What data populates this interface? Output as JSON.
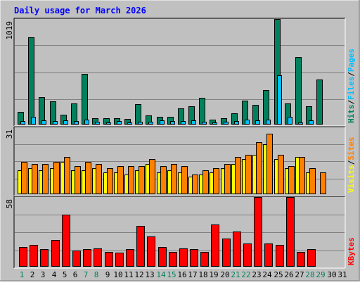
{
  "title": "Daily usage for March 2026",
  "colors": {
    "frame_bg": "#c0c0c0",
    "title_text": "#0000ff",
    "hits": "#00805c",
    "files": "#00c0ff",
    "sites": "#ff8000",
    "visits": "#ffff00",
    "kbytes": "#ff0000",
    "weekday_label": "#000000",
    "weekend_label": "#00805c"
  },
  "chart_data": [
    {
      "type": "bar",
      "name": "hits-files",
      "x": [
        1,
        2,
        3,
        4,
        5,
        6,
        7,
        8,
        9,
        10,
        11,
        12,
        13,
        14,
        15,
        16,
        17,
        18,
        19,
        20,
        21,
        22,
        23,
        24,
        25,
        26,
        27,
        28,
        29,
        30,
        31
      ],
      "series": [
        {
          "name": "Hits",
          "values": [
            115,
            839,
            259,
            222,
            90,
            196,
            487,
            58,
            52,
            53,
            47,
            190,
            79,
            66,
            69,
            152,
            174,
            255,
            43,
            55,
            104,
            223,
            188,
            329,
            1019,
            195,
            653,
            169,
            431,
            0,
            0
          ]
        },
        {
          "name": "Files",
          "values": [
            27,
            66,
            35,
            29,
            34,
            30,
            42,
            21,
            16,
            24,
            15,
            18,
            23,
            33,
            26,
            28,
            31,
            22,
            12,
            18,
            25,
            39,
            34,
            42,
            475,
            66,
            12,
            33,
            0,
            0,
            0
          ]
        }
      ],
      "ymax": 1019,
      "tick_label": "1019",
      "legend": [
        {
          "text": "Hits",
          "color_key": "hits"
        },
        {
          "text": "/",
          "color_key": "weekday_label"
        },
        {
          "text": "Files",
          "color_key": "files"
        },
        {
          "text": "/",
          "color_key": "weekday_label"
        },
        {
          "text": "Pages",
          "color_key": "files"
        }
      ]
    },
    {
      "type": "bar",
      "name": "visits-sites",
      "x": [
        1,
        2,
        3,
        4,
        5,
        6,
        7,
        8,
        9,
        10,
        11,
        12,
        13,
        14,
        15,
        16,
        17,
        18,
        19,
        20,
        21,
        22,
        23,
        24,
        25,
        26,
        27,
        28,
        29,
        30,
        31
      ],
      "series": [
        {
          "name": "Visits",
          "values": [
            11,
            12,
            11,
            12,
            15,
            11,
            11,
            12,
            10,
            10,
            9,
            11,
            14,
            10,
            11,
            10,
            8,
            9,
            10,
            12,
            14,
            16,
            18,
            23,
            16,
            12,
            17,
            10,
            0,
            0,
            0
          ]
        },
        {
          "name": "Sites",
          "values": [
            15,
            14,
            14,
            15,
            17,
            13,
            15,
            14,
            12,
            13,
            13,
            13,
            16,
            13,
            14,
            13,
            9,
            11,
            12,
            14,
            17,
            18,
            24,
            28,
            18,
            13,
            17,
            12,
            10,
            0,
            0
          ]
        }
      ],
      "ymax": 31,
      "tick_label": "31",
      "legend": [
        {
          "text": "Visits",
          "color_key": "visits"
        },
        {
          "text": "/",
          "color_key": "weekday_label"
        },
        {
          "text": "Sites",
          "color_key": "sites"
        }
      ]
    },
    {
      "type": "bar",
      "name": "kbytes",
      "x": [
        1,
        2,
        3,
        4,
        5,
        6,
        7,
        8,
        9,
        10,
        11,
        12,
        13,
        14,
        15,
        16,
        17,
        18,
        19,
        20,
        21,
        22,
        23,
        24,
        25,
        26,
        27,
        28,
        29,
        30,
        31
      ],
      "series": [
        {
          "name": "KBytes",
          "values": [
            16,
            18,
            14,
            22,
            43,
            13,
            14,
            15,
            12,
            11,
            14,
            34,
            25,
            16,
            12,
            15,
            14,
            12,
            35,
            23,
            29,
            19,
            58,
            19,
            18,
            58,
            12,
            14,
            0,
            0,
            0
          ]
        }
      ],
      "ymax": 58,
      "tick_label": "58",
      "legend": [
        {
          "text": "KBytes",
          "color_key": "kbytes"
        }
      ]
    }
  ],
  "x_labels": [
    "1",
    "2",
    "3",
    "4",
    "5",
    "6",
    "7",
    "8",
    "9",
    "10",
    "11",
    "12",
    "13",
    "14",
    "15",
    "16",
    "17",
    "18",
    "19",
    "20",
    "21",
    "22",
    "23",
    "24",
    "25",
    "26",
    "27",
    "28",
    "29",
    "30",
    "31"
  ],
  "weekend_days": [
    1,
    7,
    8,
    14,
    15,
    21,
    22,
    28,
    29
  ]
}
